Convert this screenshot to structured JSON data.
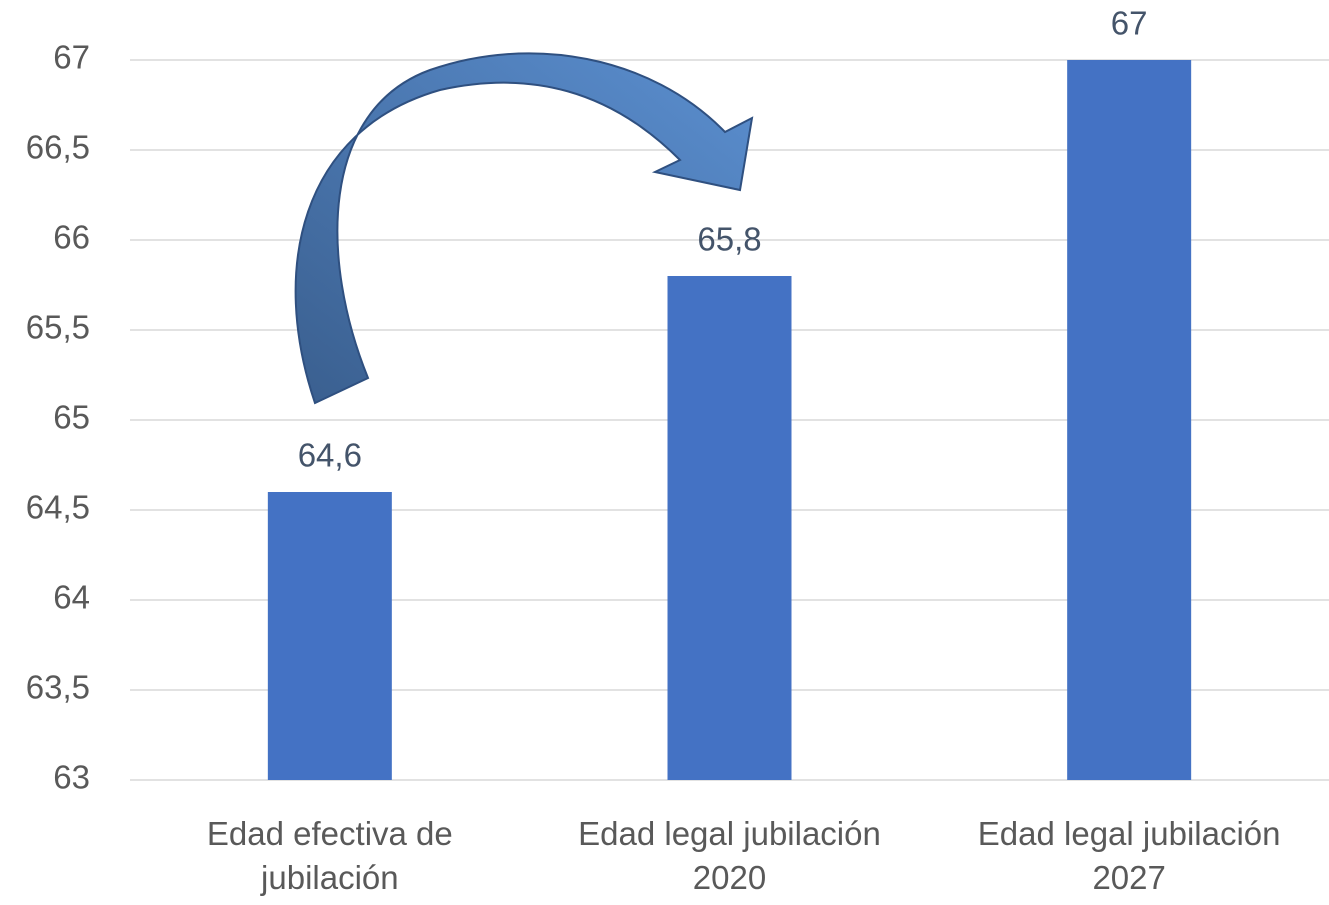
{
  "chart_data": {
    "type": "bar",
    "categories": [
      "Edad efectiva de jubilación",
      "Edad legal jubilación 2020",
      "Edad legal jubilación 2027"
    ],
    "values": [
      64.6,
      65.8,
      67
    ],
    "value_labels": [
      "64,6",
      "65,8",
      "67"
    ],
    "color": "#4472c4",
    "ylim": [
      63,
      67
    ],
    "yticks": [
      63,
      {
        "value": 63.5,
        "label": "63,5"
      },
      64,
      {
        "value": 64.5,
        "label": "64,5"
      },
      65,
      {
        "value": 65.5,
        "label": "65,5"
      },
      66,
      {
        "value": 66.5,
        "label": "66,5"
      },
      67
    ],
    "grid": true
  }
}
